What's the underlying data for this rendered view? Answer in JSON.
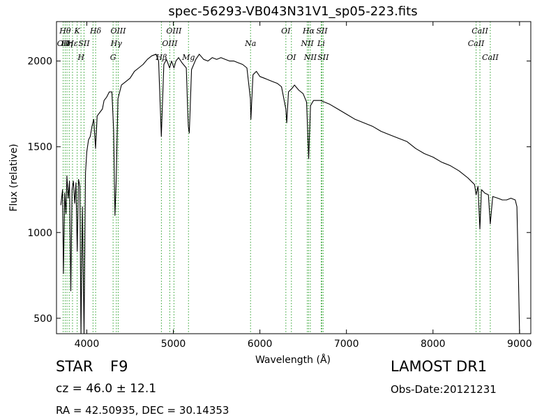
{
  "chart_data": {
    "type": "line",
    "title": "spec-56293-VB043N31V1_sp05-223.fits",
    "xlabel": "Wavelength (Å)",
    "ylabel": "Flux (relative)",
    "xlim": [
      3650,
      9130
    ],
    "ylim": [
      410,
      2230
    ],
    "xticks": [
      4000,
      5000,
      6000,
      7000,
      8000,
      9000
    ],
    "yticks": [
      500,
      1000,
      1500,
      2000
    ],
    "grid": false,
    "line_color": "#000000",
    "marker_color": "#2ca02c",
    "series": [
      {
        "points": [
          [
            3700,
            1160
          ],
          [
            3720,
            1250
          ],
          [
            3730,
            760
          ],
          [
            3745,
            1230
          ],
          [
            3760,
            1110
          ],
          [
            3770,
            1330
          ],
          [
            3785,
            1200
          ],
          [
            3800,
            1300
          ],
          [
            3815,
            660
          ],
          [
            3830,
            1250
          ],
          [
            3845,
            1300
          ],
          [
            3860,
            1170
          ],
          [
            3875,
            1290
          ],
          [
            3889,
            890
          ],
          [
            3905,
            1310
          ],
          [
            3920,
            1270
          ],
          [
            3933,
            410
          ],
          [
            3950,
            1150
          ],
          [
            3968,
            410
          ],
          [
            3985,
            1350
          ],
          [
            4000,
            1470
          ],
          [
            4020,
            1540
          ],
          [
            4040,
            1560
          ],
          [
            4060,
            1620
          ],
          [
            4080,
            1660
          ],
          [
            4101,
            1490
          ],
          [
            4120,
            1680
          ],
          [
            4150,
            1700
          ],
          [
            4180,
            1720
          ],
          [
            4200,
            1770
          ],
          [
            4230,
            1790
          ],
          [
            4260,
            1820
          ],
          [
            4290,
            1820
          ],
          [
            4310,
            1600
          ],
          [
            4325,
            1100
          ],
          [
            4340,
            1300
          ],
          [
            4360,
            1780
          ],
          [
            4400,
            1860
          ],
          [
            4450,
            1880
          ],
          [
            4500,
            1900
          ],
          [
            4550,
            1940
          ],
          [
            4600,
            1960
          ],
          [
            4650,
            1980
          ],
          [
            4700,
            2010
          ],
          [
            4750,
            2030
          ],
          [
            4800,
            2040
          ],
          [
            4830,
            2000
          ],
          [
            4861,
            1560
          ],
          [
            4890,
            1980
          ],
          [
            4920,
            2010
          ],
          [
            4957,
            1960
          ],
          [
            4980,
            2000
          ],
          [
            5007,
            1960
          ],
          [
            5030,
            2000
          ],
          [
            5060,
            2020
          ],
          [
            5100,
            1990
          ],
          [
            5150,
            1960
          ],
          [
            5167,
            1700
          ],
          [
            5173,
            1620
          ],
          [
            5184,
            1580
          ],
          [
            5210,
            1950
          ],
          [
            5260,
            2010
          ],
          [
            5300,
            2040
          ],
          [
            5350,
            2010
          ],
          [
            5400,
            2000
          ],
          [
            5450,
            2020
          ],
          [
            5500,
            2010
          ],
          [
            5550,
            2020
          ],
          [
            5600,
            2010
          ],
          [
            5650,
            2000
          ],
          [
            5700,
            2000
          ],
          [
            5750,
            1990
          ],
          [
            5800,
            1980
          ],
          [
            5850,
            1960
          ],
          [
            5890,
            1780
          ],
          [
            5896,
            1660
          ],
          [
            5920,
            1920
          ],
          [
            5960,
            1940
          ],
          [
            6000,
            1910
          ],
          [
            6050,
            1900
          ],
          [
            6100,
            1890
          ],
          [
            6150,
            1880
          ],
          [
            6200,
            1870
          ],
          [
            6250,
            1850
          ],
          [
            6300,
            1720
          ],
          [
            6310,
            1640
          ],
          [
            6330,
            1820
          ],
          [
            6370,
            1840
          ],
          [
            6400,
            1860
          ],
          [
            6450,
            1830
          ],
          [
            6500,
            1810
          ],
          [
            6540,
            1760
          ],
          [
            6563,
            1430
          ],
          [
            6585,
            1740
          ],
          [
            6620,
            1770
          ],
          [
            6700,
            1770
          ],
          [
            6800,
            1750
          ],
          [
            6900,
            1720
          ],
          [
            7000,
            1690
          ],
          [
            7100,
            1660
          ],
          [
            7200,
            1640
          ],
          [
            7300,
            1620
          ],
          [
            7400,
            1590
          ],
          [
            7500,
            1570
          ],
          [
            7600,
            1550
          ],
          [
            7700,
            1530
          ],
          [
            7800,
            1490
          ],
          [
            7900,
            1460
          ],
          [
            8000,
            1440
          ],
          [
            8100,
            1410
          ],
          [
            8200,
            1390
          ],
          [
            8300,
            1360
          ],
          [
            8400,
            1320
          ],
          [
            8480,
            1280
          ],
          [
            8498,
            1220
          ],
          [
            8520,
            1270
          ],
          [
            8542,
            1020
          ],
          [
            8560,
            1250
          ],
          [
            8600,
            1230
          ],
          [
            8640,
            1220
          ],
          [
            8662,
            1050
          ],
          [
            8690,
            1210
          ],
          [
            8750,
            1200
          ],
          [
            8800,
            1190
          ],
          [
            8850,
            1190
          ],
          [
            8900,
            1200
          ],
          [
            8950,
            1190
          ],
          [
            8970,
            1150
          ],
          [
            8985,
            800
          ],
          [
            9000,
            410
          ]
        ]
      }
    ],
    "lines": [
      {
        "x": 3727,
        "label": "OII",
        "row": 2
      },
      {
        "x": 3750,
        "label": "Hθ",
        "row": 0
      },
      {
        "x": 3771,
        "label": "Hη",
        "row": 1
      },
      {
        "x": 3797,
        "label": "",
        "row": 0
      },
      {
        "x": 3835,
        "label": "Hε",
        "row": 2
      },
      {
        "x": 3889,
        "label": "K",
        "row": 0
      },
      {
        "x": 3933,
        "label": "H",
        "row": 3
      },
      {
        "x": 3968,
        "label": "SII",
        "row": 2
      },
      {
        "x": 4072,
        "label": "",
        "row": 0
      },
      {
        "x": 4102,
        "label": "Hδ",
        "row": 0
      },
      {
        "x": 4304,
        "label": "G",
        "row": 3
      },
      {
        "x": 4341,
        "label": "Hγ",
        "row": 2
      },
      {
        "x": 4363,
        "label": "OIII",
        "row": 0
      },
      {
        "x": 4862,
        "label": "Hβ",
        "row": 3
      },
      {
        "x": 4959,
        "label": "OIII",
        "row": 2
      },
      {
        "x": 5007,
        "label": "OIII",
        "row": 0
      },
      {
        "x": 5175,
        "label": "Mg",
        "row": 3
      },
      {
        "x": 5892,
        "label": "Na",
        "row": 2
      },
      {
        "x": 6300,
        "label": "OI",
        "row": 0
      },
      {
        "x": 6364,
        "label": "OI",
        "row": 3
      },
      {
        "x": 6548,
        "label": "NII",
        "row": 2
      },
      {
        "x": 6563,
        "label": "Hα",
        "row": 0
      },
      {
        "x": 6583,
        "label": "NII",
        "row": 3
      },
      {
        "x": 6708,
        "label": "Li",
        "row": 2
      },
      {
        "x": 6716,
        "label": "SII",
        "row": 0
      },
      {
        "x": 6731,
        "label": "SII",
        "row": 3
      },
      {
        "x": 8498,
        "label": "CaII",
        "row": 2
      },
      {
        "x": 8542,
        "label": "CaII",
        "row": 0
      },
      {
        "x": 8662,
        "label": "CaII",
        "row": 3
      }
    ]
  },
  "info": {
    "object_class": "STAR",
    "subclass": "F9",
    "survey": "LAMOST DR1",
    "redshift_text": "cz = 46.0 ± 12.1",
    "obs_date_text": "Obs-Date:20121231",
    "coords_text": "RA = 42.50935, DEC = 30.14353"
  }
}
